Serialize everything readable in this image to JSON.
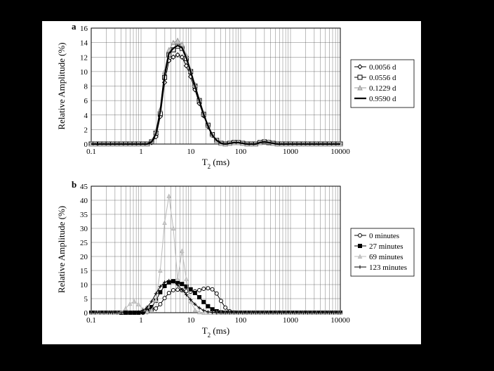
{
  "figure": {
    "background_color": "#000000",
    "panel_color": "#ffffff",
    "xaxis_label": "T",
    "xaxis_label_sub": "2",
    "xaxis_label_unit": " (ms)",
    "xaxis_fontsize": 13,
    "yaxis_label": "Relative Amplitude (%)",
    "yaxis_fontsize": 13
  },
  "chartA": {
    "type": "line",
    "panel_label": "a",
    "panel_label_fontsize": 13,
    "panel_label_weight": "bold",
    "xScale": "log",
    "xlim": [
      0.1,
      10000
    ],
    "ylim": [
      0,
      16
    ],
    "ytick_step": 2,
    "xticks": [
      0.1,
      1,
      10,
      100,
      1000,
      10000
    ],
    "xtick_labels": [
      "0.1",
      "1",
      "10",
      "100",
      "1000",
      "10000"
    ],
    "grid_color": "#555555",
    "grid_width": 0.4,
    "xData": [
      0.1,
      0.12,
      0.15,
      0.18,
      0.22,
      0.27,
      0.33,
      0.4,
      0.49,
      0.6,
      0.73,
      0.89,
      1.09,
      1.33,
      1.63,
      1.99,
      2.43,
      2.97,
      3.63,
      4.44,
      5.43,
      6.63,
      8.1,
      9.9,
      12.09,
      14.78,
      18.06,
      22.07,
      26.96,
      32.94,
      40.26,
      49.18,
      60.09,
      73.43,
      89.72,
      109.63,
      133.96,
      163.69,
      200.0,
      244.38,
      298.61,
      364.87,
      445.84,
      544.77,
      665.65,
      813.36,
      993.85,
      1214.4,
      1483.89,
      1813.18,
      2215.55,
      2707.2,
      3307.95,
      4041.99,
      4938.94,
      6034.93,
      7374.13,
      9010.51,
      10000
    ],
    "series": [
      {
        "name": "0.0056 d",
        "marker": "diamond",
        "marker_size": 6,
        "line_color": "#000000",
        "line_width": 1,
        "fill": "#ffffff",
        "y": [
          0,
          0,
          0,
          0,
          0,
          0,
          0,
          0,
          0,
          0,
          0,
          0,
          0,
          0,
          0.2,
          1.0,
          3.8,
          8.5,
          11.5,
          12.0,
          12.3,
          12.0,
          10.8,
          9.3,
          7.5,
          5.6,
          3.9,
          2.4,
          1.2,
          0.5,
          0.1,
          0,
          0.1,
          0.2,
          0.2,
          0.1,
          0,
          0,
          0,
          0.2,
          0.3,
          0.2,
          0.1,
          0,
          0,
          0,
          0,
          0,
          0,
          0,
          0,
          0,
          0,
          0,
          0,
          0,
          0,
          0,
          0
        ]
      },
      {
        "name": "0.0556 d",
        "marker": "square",
        "marker_size": 6,
        "line_color": "#000000",
        "line_width": 1,
        "fill": "#ffffff",
        "y": [
          0,
          0,
          0,
          0,
          0,
          0,
          0,
          0,
          0,
          0,
          0,
          0,
          0,
          0,
          0.3,
          1.5,
          4.2,
          9.2,
          12.3,
          13.0,
          13.5,
          13.2,
          11.8,
          10.0,
          8.0,
          6.0,
          4.1,
          2.6,
          1.3,
          0.5,
          0.1,
          0,
          0.1,
          0.2,
          0.2,
          0.1,
          0,
          0,
          0,
          0.2,
          0.3,
          0.2,
          0.1,
          0,
          0,
          0,
          0,
          0,
          0,
          0,
          0,
          0,
          0,
          0,
          0,
          0,
          0,
          0,
          0
        ]
      },
      {
        "name": "0.1229 d",
        "marker": "triangle",
        "marker_size": 6,
        "line_color": "#999999",
        "line_width": 1,
        "fill": "#cccccc",
        "y": [
          0,
          0,
          0,
          0,
          0,
          0,
          0,
          0,
          0,
          0,
          0,
          0,
          0,
          0,
          0.4,
          1.8,
          4.8,
          10.0,
          13.0,
          14.0,
          14.3,
          13.8,
          12.2,
          10.2,
          8.2,
          6.1,
          4.2,
          2.6,
          1.3,
          0.5,
          0.1,
          0,
          0.1,
          0.2,
          0.2,
          0.1,
          0,
          0,
          0,
          0.2,
          0.4,
          0.3,
          0.1,
          0,
          0,
          0,
          0,
          0,
          0,
          0,
          0,
          0,
          0,
          0,
          0,
          0,
          0,
          0,
          0
        ]
      },
      {
        "name": "0.9590 d",
        "marker": "none",
        "marker_size": 0,
        "line_color": "#000000",
        "line_width": 2.2,
        "fill": "none",
        "y": [
          0,
          0,
          0,
          0,
          0,
          0,
          0,
          0,
          0,
          0,
          0,
          0,
          0,
          0,
          0.3,
          1.4,
          4.5,
          9.5,
          12.5,
          13.2,
          13.6,
          13.3,
          11.9,
          10.0,
          8.0,
          6.0,
          4.1,
          2.5,
          1.2,
          0.5,
          0.1,
          0,
          0.1,
          0.2,
          0.2,
          0.1,
          0,
          0,
          0,
          0.2,
          0.3,
          0.2,
          0.1,
          0,
          0,
          0,
          0,
          0,
          0,
          0,
          0,
          0,
          0,
          0,
          0,
          0,
          0,
          0,
          0
        ]
      }
    ],
    "legend": {
      "border_color": "#000000",
      "bg": "#ffffff",
      "fontsize": 11
    }
  },
  "chartB": {
    "type": "line",
    "panel_label": "b",
    "panel_label_fontsize": 13,
    "panel_label_weight": "bold",
    "xScale": "log",
    "xlim": [
      0.1,
      10000
    ],
    "ylim": [
      0,
      45
    ],
    "ytick_step": 5,
    "xticks": [
      0.1,
      1,
      10,
      100,
      1000,
      10000
    ],
    "xtick_labels": [
      "0.1",
      "1",
      "10",
      "100",
      "1000",
      "10000"
    ],
    "grid_color": "#555555",
    "grid_width": 0.4,
    "xData": [
      0.1,
      0.12,
      0.15,
      0.18,
      0.22,
      0.27,
      0.33,
      0.4,
      0.49,
      0.6,
      0.73,
      0.89,
      1.09,
      1.33,
      1.63,
      1.99,
      2.43,
      2.97,
      3.63,
      4.44,
      5.43,
      6.63,
      8.1,
      9.9,
      12.09,
      14.78,
      18.06,
      22.07,
      26.96,
      32.94,
      40.26,
      49.18,
      60.09,
      73.43,
      89.72,
      109.63,
      133.96,
      163.69,
      200.0,
      244.38,
      298.61,
      364.87,
      445.84,
      544.77,
      665.65,
      813.36,
      993.85,
      1214.4,
      1483.89,
      1813.18,
      2215.55,
      2707.2,
      3307.95,
      4041.99,
      4938.94,
      6034.93,
      7374.13,
      9010.51,
      10000
    ],
    "series": [
      {
        "name": "0 minutes",
        "marker": "circle",
        "marker_size": 5,
        "line_color": "#000000",
        "line_width": 1,
        "fill": "#ffffff",
        "y": [
          0,
          0,
          0,
          0,
          0,
          0,
          0,
          0,
          0,
          0,
          0,
          0,
          0,
          0.2,
          0.6,
          1.5,
          3.0,
          5.2,
          7.0,
          8.0,
          8.2,
          8.0,
          7.7,
          7.5,
          7.6,
          8.0,
          8.5,
          8.7,
          8.3,
          6.8,
          4.2,
          1.8,
          0.5,
          0.1,
          0,
          0,
          0,
          0,
          0,
          0,
          0,
          0,
          0,
          0,
          0,
          0,
          0,
          0,
          0,
          0,
          0,
          0,
          0,
          0,
          0,
          0,
          0,
          0,
          0
        ]
      },
      {
        "name": "27 minutes",
        "marker": "square",
        "marker_size": 5,
        "line_color": "#000000",
        "line_width": 1,
        "fill": "#000000",
        "y": [
          0,
          0,
          0,
          0,
          0,
          0,
          0,
          0,
          0,
          0,
          0,
          0,
          0.2,
          0.8,
          2.0,
          4.3,
          7.3,
          9.5,
          10.8,
          11.2,
          10.9,
          10.2,
          9.3,
          8.3,
          7.0,
          5.5,
          3.8,
          2.3,
          1.2,
          0.5,
          0.1,
          0,
          0,
          0,
          0,
          0,
          0,
          0,
          0,
          0,
          0,
          0,
          0,
          0,
          0,
          0,
          0,
          0,
          0,
          0,
          0,
          0,
          0,
          0,
          0,
          0,
          0,
          0,
          0
        ]
      },
      {
        "name": "69 minutes",
        "marker": "triangle",
        "marker_size": 5,
        "line_color": "#bbbbbb",
        "line_width": 1,
        "fill": "#cccccc",
        "y": [
          0,
          0,
          0,
          0,
          0,
          0,
          0,
          0.3,
          1.5,
          3.2,
          4.0,
          3.0,
          1.2,
          0.3,
          0.8,
          4.5,
          15.0,
          32.0,
          41.5,
          30.0,
          12.0,
          22.0,
          12.0,
          4.0,
          1.0,
          0.2,
          0,
          0,
          0,
          0,
          0,
          0,
          0,
          0,
          0,
          0,
          0,
          0,
          0,
          0,
          0,
          0,
          0,
          0,
          0,
          0,
          0,
          0,
          0,
          0,
          0,
          0,
          0,
          0,
          0,
          0,
          0,
          0,
          0
        ]
      },
      {
        "name": "123 minutes",
        "marker": "tick",
        "marker_size": 5,
        "line_color": "#000000",
        "line_width": 1,
        "fill": "#000000",
        "y": [
          0,
          0,
          0,
          0,
          0,
          0,
          0,
          0,
          0,
          0,
          0,
          0.2,
          0.8,
          2.0,
          4.0,
          6.8,
          9.3,
          10.8,
          11.4,
          11.0,
          9.8,
          8.2,
          6.4,
          4.6,
          3.0,
          1.7,
          0.8,
          0.3,
          0.1,
          0,
          0,
          0,
          0,
          0,
          0,
          0,
          0,
          0,
          0,
          0,
          0,
          0,
          0,
          0,
          0,
          0,
          0,
          0,
          0,
          0,
          0,
          0,
          0,
          0,
          0,
          0,
          0,
          0,
          0
        ]
      }
    ],
    "legend": {
      "border_color": "#000000",
      "bg": "#ffffff",
      "fontsize": 11
    }
  }
}
